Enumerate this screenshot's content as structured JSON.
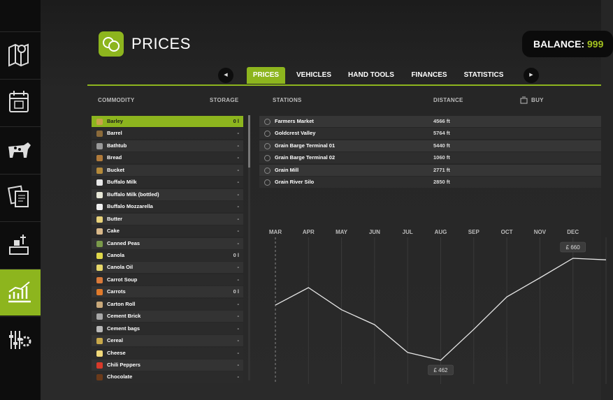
{
  "header": {
    "title": "PRICES",
    "balance_label": "BALANCE:",
    "balance_value": "999"
  },
  "tabs": [
    "PRICES",
    "VEHICLES",
    "HAND TOOLS",
    "FINANCES",
    "STATISTICS"
  ],
  "columns": {
    "commodity": "COMMODITY",
    "storage": "STORAGE",
    "stations": "STATIONS",
    "distance": "DISTANCE",
    "buy": "BUY"
  },
  "commodities": [
    {
      "name": "Barley",
      "storage": "0 l"
    },
    {
      "name": "Barrel",
      "storage": "-"
    },
    {
      "name": "Bathtub",
      "storage": "-"
    },
    {
      "name": "Bread",
      "storage": "-"
    },
    {
      "name": "Bucket",
      "storage": "-"
    },
    {
      "name": "Buffalo Milk",
      "storage": "-"
    },
    {
      "name": "Buffalo Milk (bottled)",
      "storage": "-"
    },
    {
      "name": "Buffalo Mozzarella",
      "storage": "-"
    },
    {
      "name": "Butter",
      "storage": "-"
    },
    {
      "name": "Cake",
      "storage": "-"
    },
    {
      "name": "Canned Peas",
      "storage": "-"
    },
    {
      "name": "Canola",
      "storage": "0 l"
    },
    {
      "name": "Canola Oil",
      "storage": "-"
    },
    {
      "name": "Carrot Soup",
      "storage": "-"
    },
    {
      "name": "Carrots",
      "storage": "0 l"
    },
    {
      "name": "Carton Roll",
      "storage": "-"
    },
    {
      "name": "Cement Brick",
      "storage": "-"
    },
    {
      "name": "Cement bags",
      "storage": "-"
    },
    {
      "name": "Cereal",
      "storage": "-"
    },
    {
      "name": "Cheese",
      "storage": "-"
    },
    {
      "name": "Chili Peppers",
      "storage": "-"
    },
    {
      "name": "Chocolate",
      "storage": "-"
    }
  ],
  "stations": [
    {
      "name": "Farmers Market",
      "distance": "4566 ft"
    },
    {
      "name": "Goldcrest Valley",
      "distance": "5764 ft"
    },
    {
      "name": "Grain Barge Terminal 01",
      "distance": "5440 ft"
    },
    {
      "name": "Grain Barge Terminal 02",
      "distance": "1060 ft"
    },
    {
      "name": "Grain Mill",
      "distance": "2771 ft"
    },
    {
      "name": "Grain River Silo",
      "distance": "2850 ft"
    }
  ],
  "price_chart": {
    "type": "line",
    "categories": [
      "MAR",
      "APR",
      "MAY",
      "JUN",
      "JUL",
      "AUG",
      "SEP",
      "OCT",
      "NOV",
      "DEC",
      null
    ],
    "values": [
      569,
      603,
      560,
      531,
      477,
      462,
      522,
      585,
      622,
      660,
      657
    ],
    "value_labels": [
      null,
      null,
      null,
      null,
      null,
      "£ 462",
      null,
      null,
      null,
      "£ 660",
      null
    ],
    "color": "#e6e6e6"
  }
}
